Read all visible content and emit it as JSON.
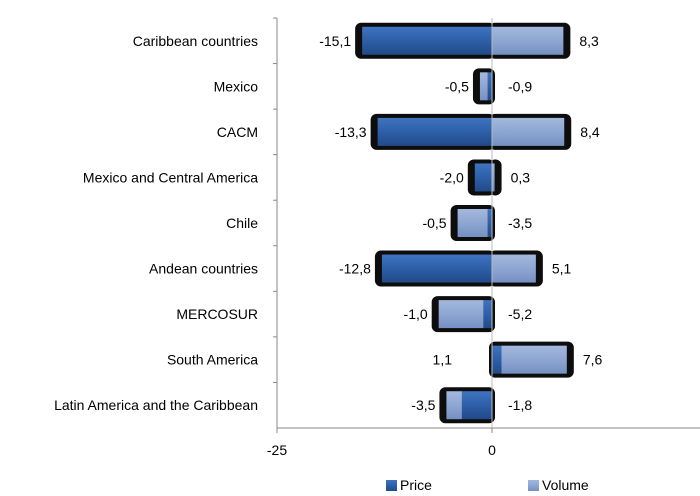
{
  "chart_data": {
    "type": "bar",
    "orientation": "horizontal",
    "stacked": true,
    "categories": [
      "Caribbean countries",
      "Mexico",
      "CACM",
      "Mexico and Central America",
      "Chile",
      "Andean countries",
      "MERCOSUR",
      "South America",
      "Latin America and the Caribbean"
    ],
    "series": [
      {
        "name": "Price",
        "color": "#2E5FA8",
        "values": [
          -15.1,
          -0.5,
          -13.3,
          -2.0,
          -0.5,
          -12.8,
          -1.0,
          1.1,
          -3.5
        ]
      },
      {
        "name": "Volume",
        "color": "#8EA6D2",
        "values": [
          8.3,
          -0.9,
          8.4,
          0.3,
          -3.5,
          5.1,
          -5.2,
          7.6,
          -1.8
        ]
      }
    ],
    "price_labels": [
      "-15,1",
      "-0,5",
      "-13,3",
      "-2,0",
      "-0,5",
      "-12,8",
      "-1,0",
      "1,1",
      "-3,5"
    ],
    "volume_labels": [
      "8,3",
      "-0,9",
      "8,4",
      "0,3",
      "-3,5",
      "5,1",
      "-5,2",
      "7,6",
      "-1,8"
    ],
    "x_ticks": [
      {
        "value": -25,
        "label": "-25"
      },
      {
        "value": 0,
        "label": "0"
      }
    ],
    "xlim": [
      -25,
      25
    ],
    "legend_position": "bottom",
    "grid": false
  }
}
